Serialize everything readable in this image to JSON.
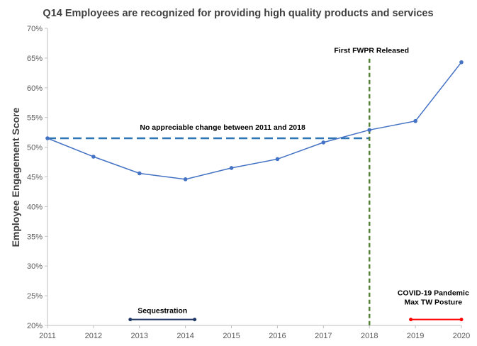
{
  "chart_data": {
    "type": "line",
    "title": "Q14 Employees are recognized for providing high quality products and services",
    "ylabel": "Employee Engagement Score",
    "xlabel": "",
    "x": [
      2011,
      2012,
      2013,
      2014,
      2015,
      2016,
      2017,
      2018,
      2019,
      2020
    ],
    "x_tick_labels": [
      "2011",
      "2012",
      "2013",
      "2014",
      "2015",
      "2016",
      "2017",
      "2018",
      "2019",
      "2020"
    ],
    "y_tick_labels": [
      "20%",
      "25%",
      "30%",
      "35%",
      "40%",
      "45%",
      "50%",
      "55%",
      "60%",
      "65%",
      "70%"
    ],
    "ylim": [
      20,
      70
    ],
    "xlim": [
      2011,
      2020
    ],
    "grid": false,
    "series": [
      {
        "values": [
          51.5,
          48.4,
          45.6,
          44.6,
          46.5,
          48.0,
          50.8,
          52.9,
          54.4,
          64.3
        ],
        "color": "#4472c4"
      }
    ],
    "annotations": {
      "baseline": {
        "label": "No appreciable change between 2011 and 2018",
        "y": 51.5,
        "x_start": 2011,
        "x_end": 2018,
        "color": "#2e75b6"
      },
      "fwpr": {
        "label": "First FWPR Released",
        "x": 2018,
        "color": "#548235"
      },
      "sequestration": {
        "label": "Sequestration",
        "x_start": 2012.8,
        "x_end": 2014.2,
        "y": 21.0,
        "color": "#1f3864"
      },
      "covid": {
        "label_line1": "COVID-19 Pandemic",
        "label_line2": "Max TW Posture",
        "x_start": 2018.9,
        "x_end": 2020.0,
        "y": 21.0,
        "color": "#ff0000"
      }
    }
  }
}
